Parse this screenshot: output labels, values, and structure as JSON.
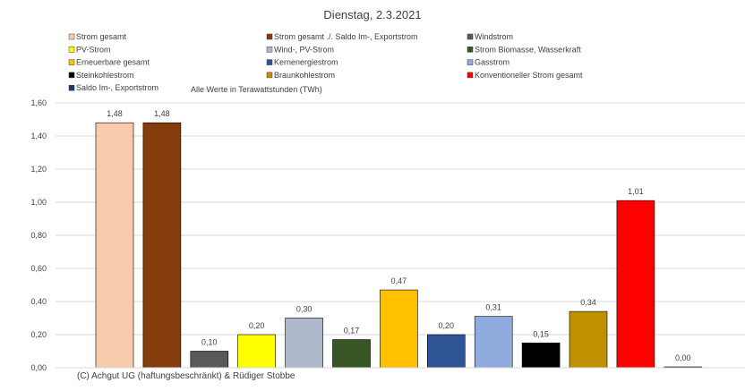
{
  "chart_data": {
    "type": "bar",
    "title": "Dienstag, 2.3.2021",
    "note": "Alle Werte in Terawattstunden (TWh)",
    "copyright": "(C) Achgut UG (haftungsbeschränkt) & Rüdiger Stobbe",
    "ylim": [
      0,
      1.6
    ],
    "yticks": [
      "1,60",
      "1,40",
      "1,20",
      "1,00",
      "0,80",
      "0,60",
      "0,40",
      "0,20",
      "0,00"
    ],
    "grid": true,
    "legend_position": "top",
    "categories": [
      "Strom gesamt",
      "Strom gesamt ./. Saldo Im-, Exportstrom",
      "Windstrom",
      "PV-Strom",
      "Wind-, PV-Strom",
      "Strom Biomasse, Wasserkraft",
      "Erneuerbare gesamt",
      "Kernenergiestrom",
      "Gasstrom",
      "Steinkohlestrom",
      "Braunkohlestrom",
      "Konventioneller Strom gesamt",
      "Saldo Im-, Exportstrom"
    ],
    "values": [
      1.48,
      1.48,
      0.1,
      0.2,
      0.3,
      0.17,
      0.47,
      0.2,
      0.31,
      0.15,
      0.34,
      1.01,
      0.0
    ],
    "value_labels": [
      "1,48",
      "1,48",
      "0,10",
      "0,20",
      "0,30",
      "0,17",
      "0,47",
      "0,20",
      "0,31",
      "0,15",
      "0,34",
      "1,01",
      "0,00"
    ],
    "colors": [
      "#f8cbad",
      "#843c0c",
      "#595959",
      "#ffff00",
      "#adb9ca",
      "#375623",
      "#ffc000",
      "#2f5597",
      "#8faadc",
      "#000000",
      "#bf9000",
      "#ff0000",
      "#1f3864"
    ]
  }
}
